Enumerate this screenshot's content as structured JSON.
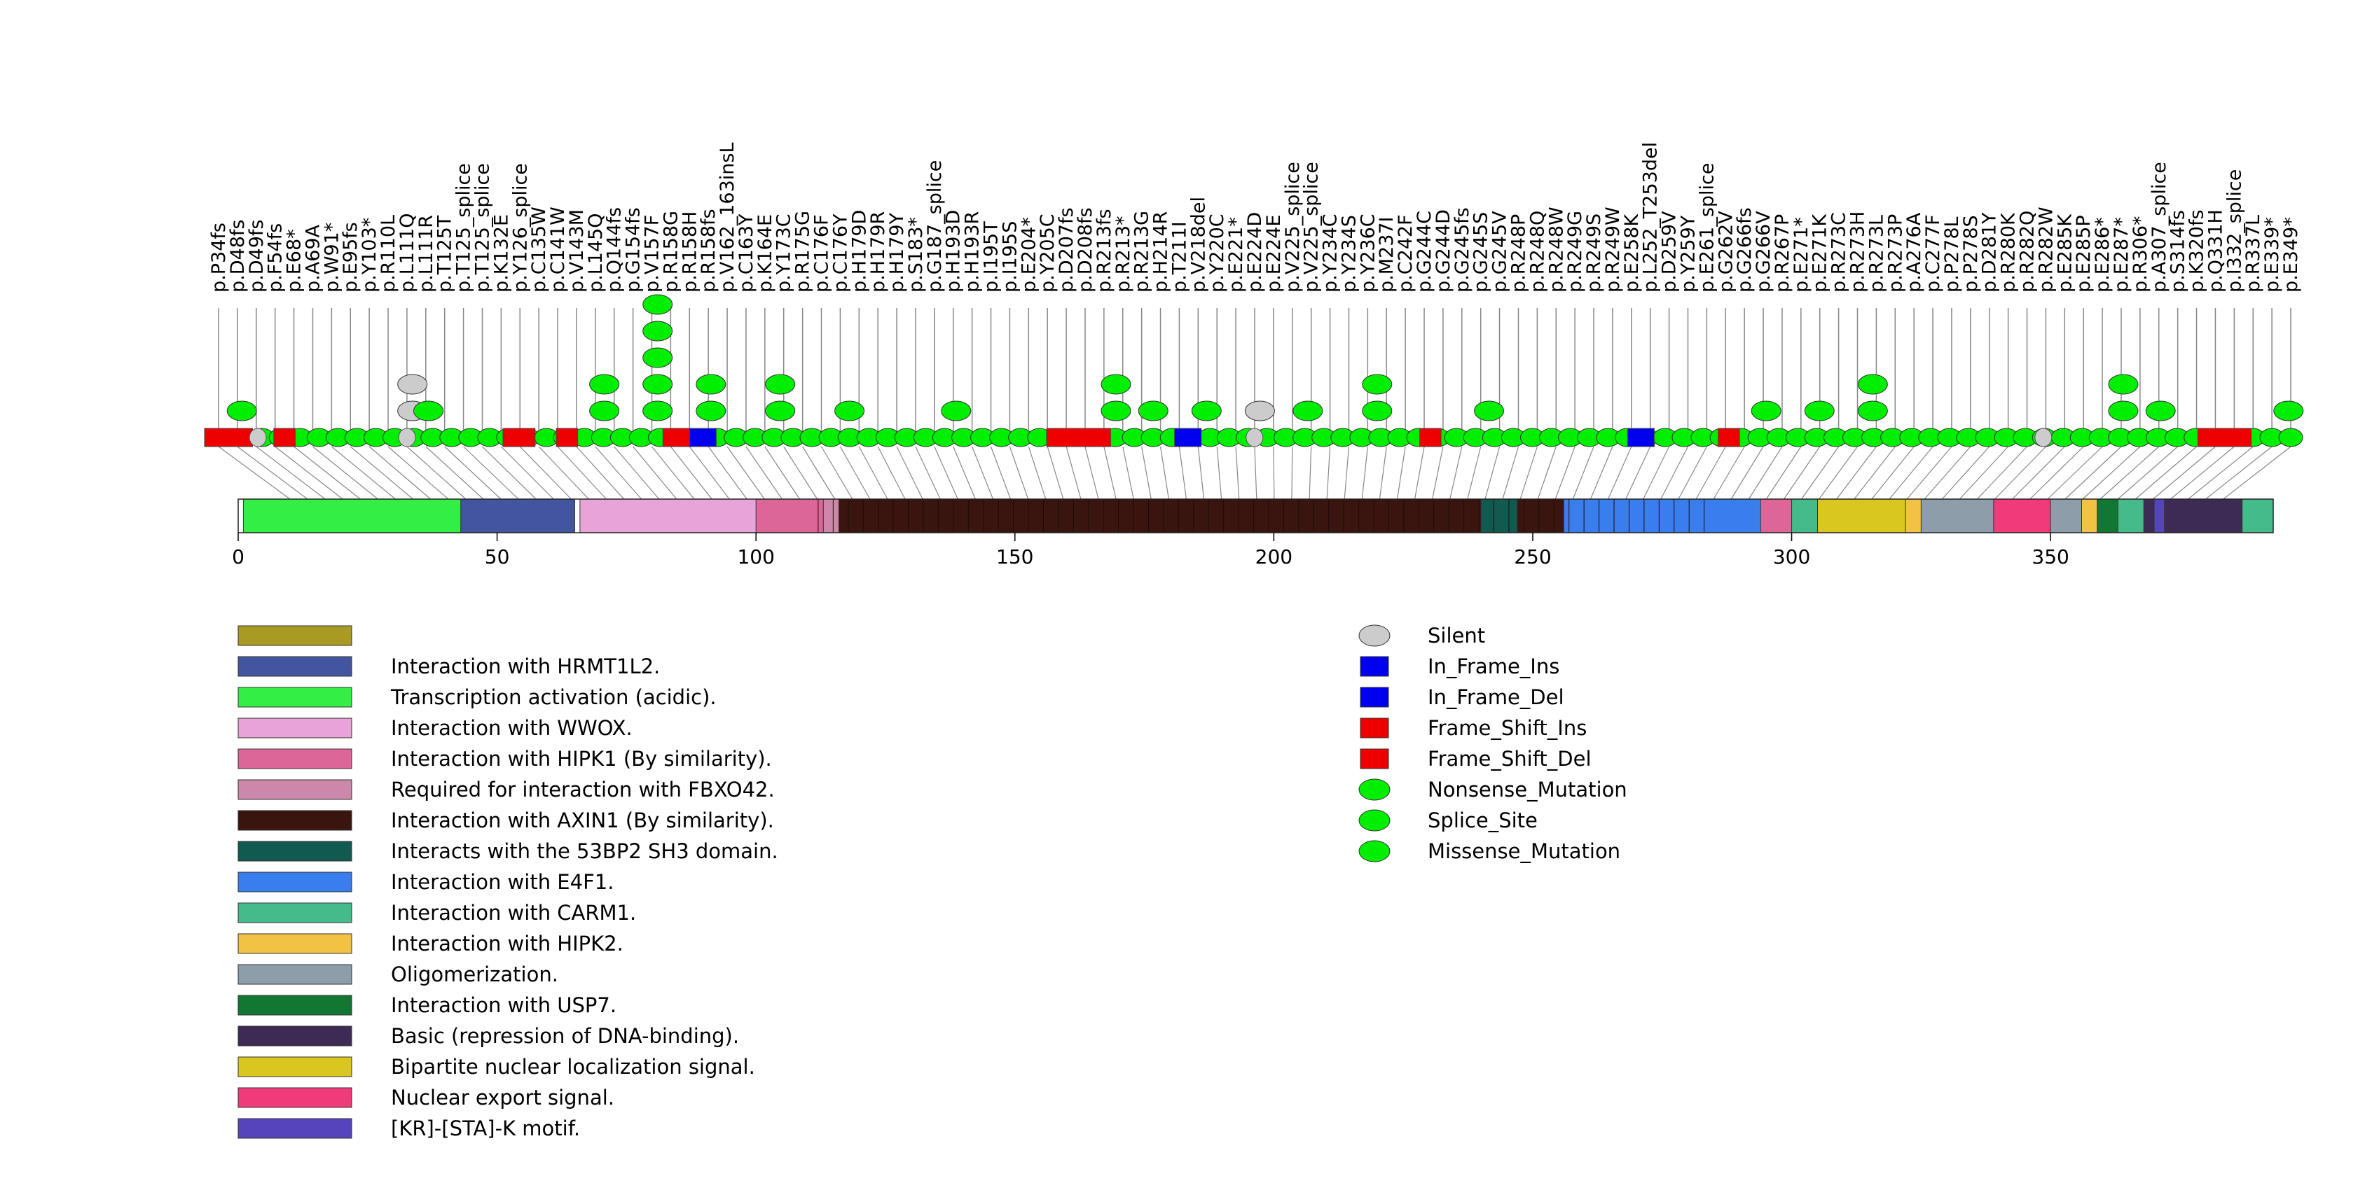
{
  "chart_data": {
    "type": "lollipop",
    "protein_length": 393,
    "axis": {
      "ticks": [
        0,
        50,
        100,
        150,
        200,
        250,
        300,
        350
      ],
      "range": [
        0,
        393
      ]
    },
    "mutation_labels": [
      "p.P34fs",
      "p.D48fs",
      "p.D49fs",
      "p.F54fs",
      "p.E68*",
      "p.A69A",
      "p.W91*",
      "p.E95fs",
      "p.Y103*",
      "p.R110L",
      "p.L111Q",
      "p.L111R",
      "p.T125T",
      "p.T125_splice",
      "p.T125_splice",
      "p.K132E",
      "p.Y126_splice",
      "p.C135W",
      "p.C141W",
      "p.V143M",
      "p.L145Q",
      "p.Q144fs",
      "p.G154fs",
      "p.V157F",
      "p.R158G",
      "p.R158H",
      "p.R158fs",
      "p.V162_163insL",
      "p.C163Y",
      "p.K164E",
      "p.Y173C",
      "p.R175G",
      "p.C176F",
      "p.C176Y",
      "p.H179D",
      "p.H179R",
      "p.H179Y",
      "p.S183*",
      "p.G187_splice",
      "p.H193D",
      "p.H193R",
      "p.I195T",
      "p.I195S",
      "p.E204*",
      "p.Y205C",
      "p.D207fs",
      "p.D208fs",
      "p.R213fs",
      "p.R213*",
      "p.R213G",
      "p.H214R",
      "p.T211I",
      "p.V218del",
      "p.Y220C",
      "p.E221*",
      "p.E224D",
      "p.E224E",
      "p.V225_splice",
      "p.V225_splice",
      "p.Y234C",
      "p.Y234S",
      "p.Y236C",
      "p.M237I",
      "p.C242F",
      "p.G244C",
      "p.G244D",
      "p.G245fs",
      "p.G245S",
      "p.G245V",
      "p.R248P",
      "p.R248Q",
      "p.R248W",
      "p.R249G",
      "p.R249S",
      "p.R249W",
      "p.E258K",
      "p.L252_T253del",
      "p.D259V",
      "p.Y259Y",
      "p.E261_splice",
      "p.G262V",
      "p.G266fs",
      "p.G266V",
      "p.R267P",
      "p.E271*",
      "p.E271K",
      "p.R273C",
      "p.R273H",
      "p.R273L",
      "p.R273P",
      "p.A276A",
      "p.C277F",
      "p.P278L",
      "p.P278S",
      "p.D281Y",
      "p.R280K",
      "p.R282Q",
      "p.R282W",
      "p.E285K",
      "p.E285P",
      "p.E286*",
      "p.E287*",
      "p.R306*",
      "p.A307_splice",
      "p.S314fs",
      "p.K320fs",
      "p.Q331H",
      "p.I332_splice",
      "p.R337L",
      "p.E339*",
      "p.E349*"
    ],
    "lollipop_sites": [
      {
        "pos": 7,
        "type": "Missense_Mutation",
        "height": 1
      },
      {
        "pos": 39,
        "type": "Silent",
        "height": 2
      },
      {
        "pos": 42,
        "type": "Missense_Mutation",
        "height": 1
      },
      {
        "pos": 75,
        "type": "Missense_Mutation",
        "height": 2
      },
      {
        "pos": 85,
        "type": "Missense_Mutation",
        "height": 5
      },
      {
        "pos": 95,
        "type": "Missense_Mutation",
        "height": 2
      },
      {
        "pos": 108,
        "type": "Missense_Mutation",
        "height": 2
      },
      {
        "pos": 121,
        "type": "Missense_Mutation",
        "height": 1
      },
      {
        "pos": 141,
        "type": "Missense_Mutation",
        "height": 1
      },
      {
        "pos": 171,
        "type": "Missense_Mutation",
        "height": 2
      },
      {
        "pos": 178,
        "type": "Missense_Mutation",
        "height": 1
      },
      {
        "pos": 188,
        "type": "Missense_Mutation",
        "height": 1
      },
      {
        "pos": 198,
        "type": "Silent",
        "height": 1
      },
      {
        "pos": 207,
        "type": "Missense_Mutation",
        "height": 1
      },
      {
        "pos": 220,
        "type": "Missense_Mutation",
        "height": 2
      },
      {
        "pos": 241,
        "type": "Missense_Mutation",
        "height": 1
      },
      {
        "pos": 293,
        "type": "Missense_Mutation",
        "height": 1
      },
      {
        "pos": 303,
        "type": "Missense_Mutation",
        "height": 1
      },
      {
        "pos": 313,
        "type": "Missense_Mutation",
        "height": 2
      },
      {
        "pos": 360,
        "type": "Missense_Mutation",
        "height": 2
      },
      {
        "pos": 367,
        "type": "Missense_Mutation",
        "height": 1
      },
      {
        "pos": 391,
        "type": "Missense_Mutation",
        "height": 1
      }
    ],
    "domains": [
      {
        "name": "Transcription activation (acidic).",
        "start": 1,
        "end": 43,
        "color": "#33ee44"
      },
      {
        "name": "Interaction with HRMT1L2.",
        "start": 43,
        "end": 65,
        "color": "#4455a0"
      },
      {
        "name": "Interaction with WWOX.",
        "start": 66,
        "end": 110,
        "color": "#e8a4d8"
      },
      {
        "name": "Interaction with HIPK1 (By similarity).",
        "start": 100,
        "end": 370,
        "color": "#dd6699"
      },
      {
        "name": "Required for interaction with FBXO42.",
        "start": 113,
        "end": 236,
        "color": "#cc88aa"
      },
      {
        "name": "Interaction with AXIN1 (By similarity).",
        "start": 116,
        "end": 292,
        "color": "#3a1510"
      },
      {
        "name": "Interacts with the 53BP2 SH3 domain.",
        "start": 240,
        "end": 247,
        "color": "#115a50"
      },
      {
        "name": "Interaction with E4F1.",
        "start": 256,
        "end": 294,
        "color": "#3a7eee"
      },
      {
        "name": "Interaction with CARM1.",
        "start": 300,
        "end": 393,
        "color": "#44bb88"
      },
      {
        "name": "Interaction with HIPK2.",
        "start": 319,
        "end": 360,
        "color": "#f2c244"
      },
      {
        "name": "Oligomerization.",
        "start": 325,
        "end": 356,
        "color": "#8d9daa"
      },
      {
        "name": "Interaction with USP7.",
        "start": 359,
        "end": 363,
        "color": "#117733"
      },
      {
        "name": "Basic (repression of DNA-binding).",
        "start": 368,
        "end": 387,
        "color": "#3d2b55"
      },
      {
        "name": "Bipartite nuclear localization signal.",
        "start": 305,
        "end": 322,
        "color": "#d9c61f"
      },
      {
        "name": "Nuclear export signal.",
        "start": 339,
        "end": 350,
        "color": "#f03a7a"
      },
      {
        "name": "[KR]-[STA]-K motif.",
        "start": 370,
        "end": 372,
        "color": "#5544bb"
      }
    ],
    "domain_legend": [
      {
        "label": "",
        "color": "#a89a22"
      },
      {
        "label": "Interaction with HRMT1L2.",
        "color": "#4455a0"
      },
      {
        "label": "Transcription activation (acidic).",
        "color": "#33ee44"
      },
      {
        "label": "Interaction with WWOX.",
        "color": "#e8a4d8"
      },
      {
        "label": "Interaction with HIPK1 (By similarity).",
        "color": "#dd6699"
      },
      {
        "label": "Required for interaction with FBXO42.",
        "color": "#cc88aa"
      },
      {
        "label": "Interaction with AXIN1 (By similarity).",
        "color": "#3a1510"
      },
      {
        "label": "Interacts with the 53BP2 SH3 domain.",
        "color": "#115a50"
      },
      {
        "label": "Interaction with E4F1.",
        "color": "#3a7eee"
      },
      {
        "label": "Interaction with CARM1.",
        "color": "#44bb88"
      },
      {
        "label": "Interaction with HIPK2.",
        "color": "#f2c244"
      },
      {
        "label": "Oligomerization.",
        "color": "#8d9daa"
      },
      {
        "label": "Interaction with USP7.",
        "color": "#117733"
      },
      {
        "label": "Basic (repression of DNA-binding).",
        "color": "#3d2b55"
      },
      {
        "label": "Bipartite nuclear localization signal.",
        "color": "#d9c61f"
      },
      {
        "label": "Nuclear export signal.",
        "color": "#f03a7a"
      },
      {
        "label": "[KR]-[STA]-K motif.",
        "color": "#5544bb"
      }
    ],
    "mutation_legend": [
      {
        "label": "Silent",
        "shape": "ellipse",
        "color": "#cccccc"
      },
      {
        "label": "In_Frame_Ins",
        "shape": "rect",
        "color": "#0000ee"
      },
      {
        "label": "In_Frame_Del",
        "shape": "rect",
        "color": "#0000ee"
      },
      {
        "label": "Frame_Shift_Ins",
        "shape": "rect",
        "color": "#ee0000"
      },
      {
        "label": "Frame_Shift_Del",
        "shape": "rect",
        "color": "#ee0000"
      },
      {
        "label": "Nonsense_Mutation",
        "shape": "ellipse",
        "color": "#00ee00"
      },
      {
        "label": "Splice_Site",
        "shape": "ellipse",
        "color": "#00ee00"
      },
      {
        "label": "Missense_Mutation",
        "shape": "ellipse",
        "color": "#00ee00"
      }
    ],
    "track_blocks": [
      {
        "start": 0,
        "end": 9,
        "type": "Frame_Shift_Del",
        "color": "#ee0000"
      },
      {
        "start": 13,
        "end": 17,
        "type": "Frame_Shift_Del",
        "color": "#ee0000"
      },
      {
        "start": 56,
        "end": 62,
        "type": "Frame_Shift_Del",
        "color": "#ee0000"
      },
      {
        "start": 66,
        "end": 70,
        "type": "Frame_Shift_Del",
        "color": "#ee0000"
      },
      {
        "start": 86,
        "end": 92,
        "type": "Frame_Shift_Del",
        "color": "#ee0000"
      },
      {
        "start": 91,
        "end": 96,
        "type": "In_Frame_Ins",
        "color": "#0000ee"
      },
      {
        "start": 158,
        "end": 170,
        "type": "Frame_Shift_Del",
        "color": "#ee0000"
      },
      {
        "start": 182,
        "end": 187,
        "type": "In_Frame_Del",
        "color": "#0000ee"
      },
      {
        "start": 228,
        "end": 232,
        "type": "Frame_Shift_Del",
        "color": "#ee0000"
      },
      {
        "start": 267,
        "end": 272,
        "type": "In_Frame_Del",
        "color": "#0000ee"
      },
      {
        "start": 284,
        "end": 288,
        "type": "Frame_Shift_Del",
        "color": "#ee0000"
      },
      {
        "start": 374,
        "end": 384,
        "type": "Frame_Shift_Del",
        "color": "#ee0000"
      }
    ],
    "track_silent": [
      10,
      38,
      197,
      345
    ],
    "line_color": "#888888"
  }
}
